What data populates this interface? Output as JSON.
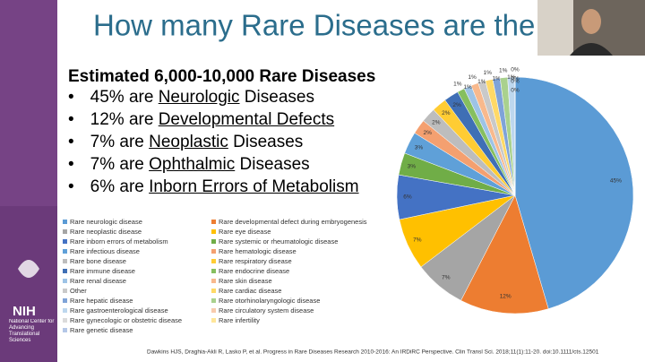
{
  "slide": {
    "title": "How many Rare Diseases are the",
    "heading": "Estimated 6,000-10,000 Rare Diseases",
    "bullets": [
      {
        "pre": "45% are ",
        "link": "Neurologic",
        "post": " Diseases"
      },
      {
        "pre": "12% are ",
        "link": "Developmental Defects",
        "post": ""
      },
      {
        "pre": "7% are ",
        "link": "Neoplastic",
        "post": " Diseases"
      },
      {
        "pre": "7% are ",
        "link": "Ophthalmic",
        "post": " Diseases"
      },
      {
        "pre": "6% are ",
        "link": "Inborn Errors of Metabolism",
        "post": ""
      }
    ],
    "citation": "Dawkins HJS, Draghia-Akli R, Lasko P, et al. Progress in Rare Diseases Research 2010-2016: An IRDiRC Perspective. Clin Transl Sci. 2018;11(1):11-20. doi:10.1111/cts.12501",
    "logo_nih": "NIH",
    "logo_text": "National Center for Advancing Translational Sciences"
  },
  "chart_data": {
    "type": "pie",
    "categories": [
      "Rare neurologic disease",
      "Rare developmental defect during embryogenesis",
      "Rare neoplastic disease",
      "Rare eye disease",
      "Rare inborn errors of metabolism",
      "Rare systemic or rheumatologic disease",
      "Rare infectious disease",
      "Rare hematologic disease",
      "Rare bone disease",
      "Rare respiratory disease",
      "Rare immune disease",
      "Rare endocrine disease",
      "Rare renal disease",
      "Rare skin disease",
      "Other",
      "Rare cardiac disease",
      "Rare hepatic disease",
      "Rare otorhinolaryngologic disease",
      "Rare gastroenterological disease",
      "Rare circulatory system disease",
      "Rare gynecologic or obstetric disease",
      "Rare infertility",
      "Rare genetic disease"
    ],
    "values": [
      45,
      12,
      7,
      7,
      6,
      3,
      3,
      2,
      2,
      2,
      2,
      1,
      1,
      1,
      1,
      1,
      1,
      1,
      1,
      0,
      0,
      0,
      0
    ],
    "value_labels": [
      "45%",
      "12%",
      "7%",
      "7%",
      "6%",
      "3%",
      "3%",
      "2%",
      "2%",
      "2%",
      "2%",
      "1%",
      "1%",
      "1%",
      "1%",
      "1%",
      "1%",
      "1%",
      "1%",
      "0%",
      "0%",
      "0%",
      "0%"
    ],
    "colors": [
      "#5b9bd5",
      "#ed7d31",
      "#a5a5a5",
      "#ffc000",
      "#4472c4",
      "#70ad47",
      "#5fa0d8",
      "#f4a070",
      "#bdbdbd",
      "#ffcc33",
      "#3f6fb5",
      "#86bf5f",
      "#9dc3e6",
      "#f8b98d",
      "#c9c9c9",
      "#ffd966",
      "#7fa3d8",
      "#a9d18e",
      "#bdd7ee",
      "#f8cbad",
      "#dbdbdb",
      "#ffe699",
      "#b4c7e7"
    ],
    "legend": "bottom-left"
  }
}
